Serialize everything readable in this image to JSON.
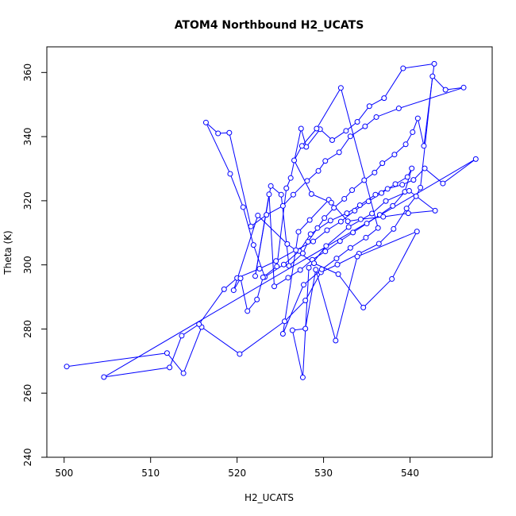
{
  "chart_data": {
    "type": "line",
    "title": "ATOM4 Northbound H2_UCATS",
    "xlabel": "H2_UCATS",
    "ylabel": "Theta (K)",
    "xlim": [
      498,
      549.5
    ],
    "ylim": [
      240,
      368
    ],
    "xticks": [
      500,
      510,
      520,
      530,
      540
    ],
    "yticks": [
      240,
      260,
      280,
      300,
      320,
      340,
      360
    ],
    "grid": false,
    "legend": "none",
    "marker": "open-circle",
    "series": [
      {
        "color": "#0000ff",
        "x": [
          500.3,
          511.9,
          513.8,
          515.9,
          520.3,
          525.5,
          527.9,
          529.7,
          531.6,
          534.1,
          536.4,
          538.1,
          539.6,
          540.7,
          541.2,
          542.6,
          544.1,
          546.2,
          538.7,
          536.1,
          534.8,
          533.1,
          531.8,
          530.2,
          529.4,
          528.1,
          526.5,
          525.3,
          523.4,
          521.6,
          519.1,
          517.8,
          516.4,
          519.2,
          520.7,
          521.9,
          523.2,
          525.4,
          527.2,
          528.5,
          530.8,
          532.7,
          534.2,
          536.0,
          537.4,
          539.1,
          540.4,
          541.7,
          543.8,
          547.6,
          504.6,
          512.2,
          513.6,
          515.6,
          518.5,
          520.0,
          522.6,
          524.5,
          526.8,
          528.8,
          530.4,
          532.0,
          533.6,
          535.2,
          536.7,
          538.3,
          539.7,
          540.2,
          539.4,
          538.0,
          536.5,
          535.0,
          533.4,
          531.9,
          530.2,
          528.7,
          527.3,
          525.9,
          524.3,
          523.7,
          522.1,
          523.9,
          525.1,
          526.0,
          527.6,
          528.2,
          529.3,
          530.1,
          531.2,
          532.4,
          533.3,
          534.7,
          535.9,
          536.8,
          538.2,
          539.5,
          540.3,
          540.9,
          541.6,
          542.8,
          539.2,
          537.0,
          535.3,
          533.9,
          532.6,
          531.0,
          529.6,
          528.0,
          527.4,
          526.2,
          525.7,
          524.6,
          523.0,
          522.3,
          521.2,
          520.4,
          519.6,
          522.4,
          525.8,
          528.9,
          531.7,
          534.6,
          537.9,
          540.8,
          533.9,
          531.4,
          529.1,
          527.9,
          526.4,
          527.6,
          528.3,
          530.3,
          532.9,
          535.6,
          537.2,
          539.9,
          542.9,
          539.8,
          536.9,
          534.3,
          532.8,
          530.6,
          528.4,
          527.1,
          525.3,
          527.7,
          529.8,
          531.5,
          533.1,
          534.9,
          536.3,
          532.0,
          529.2,
          527.5,
          526.6,
          528.6,
          530.9
        ],
        "y": [
          268.3,
          272.5,
          266.2,
          280.6,
          272.2,
          282.4,
          288.9,
          297.7,
          300.1,
          303.5,
          306.6,
          311.2,
          317.6,
          321.4,
          324.1,
          358.8,
          354.6,
          355.3,
          348.8,
          346.1,
          343.2,
          340.1,
          335.1,
          332.4,
          329.3,
          326.2,
          321.9,
          318.4,
          315.6,
          312.0,
          341.2,
          341.0,
          344.4,
          328.4,
          318.0,
          306.2,
          296.2,
          300.1,
          304.3,
          309.6,
          313.8,
          316.1,
          318.6,
          321.9,
          323.7,
          325.0,
          326.5,
          330.1,
          325.4,
          333.0,
          265.0,
          268.0,
          277.9,
          281.5,
          292.4,
          295.9,
          298.8,
          301.2,
          304.6,
          307.3,
          310.8,
          313.5,
          316.9,
          319.8,
          322.4,
          325.2,
          327.4,
          330.1,
          322.8,
          318.4,
          315.6,
          312.9,
          310.1,
          307.4,
          304.2,
          301.6,
          298.4,
          296.0,
          293.3,
          322.0,
          296.5,
          324.6,
          321.9,
          299.7,
          303.6,
          307.2,
          311.5,
          314.6,
          317.8,
          320.6,
          323.3,
          326.4,
          328.8,
          331.7,
          334.4,
          337.6,
          341.4,
          345.7,
          337.1,
          362.7,
          361.3,
          352.0,
          349.5,
          344.6,
          341.8,
          338.9,
          342.3,
          336.8,
          342.5,
          327.1,
          323.9,
          299.5,
          296.1,
          289.2,
          285.6,
          295.8,
          292.1,
          315.4,
          306.5,
          300.5,
          297.1,
          286.7,
          295.6,
          310.4,
          302.6,
          276.4,
          298.5,
          280.1,
          279.6,
          264.9,
          299.1,
          305.9,
          311.8,
          316.0,
          319.9,
          323.1,
          316.9,
          316.1,
          315.0,
          314.2,
          313.6,
          320.3,
          314.0,
          310.3,
          278.5,
          293.8,
          298.6,
          302.0,
          305.3,
          308.5,
          311.5,
          355.2,
          342.5,
          337.1,
          332.6,
          322.1,
          319.4
        ]
      }
    ]
  }
}
